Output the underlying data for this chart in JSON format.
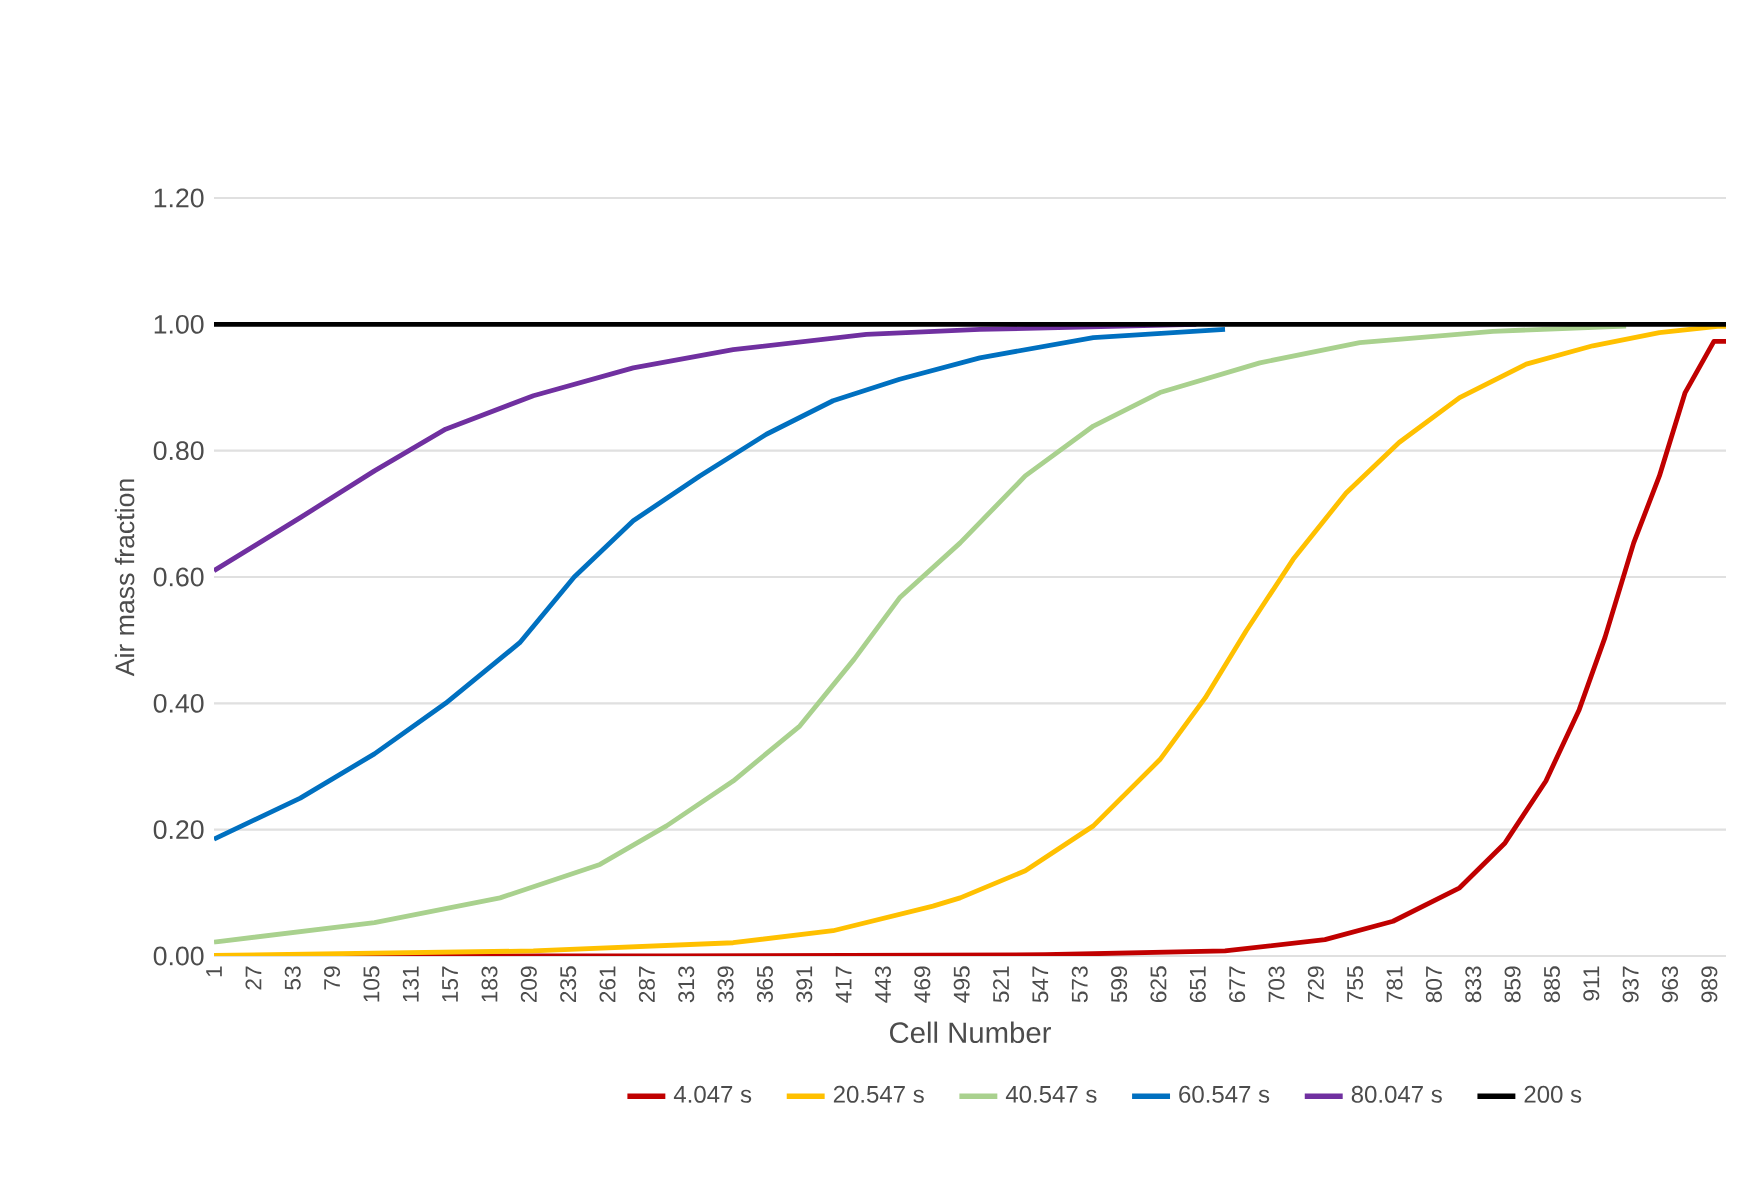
{
  "chart_data": {
    "type": "line",
    "xlabel": "Cell Number",
    "ylabel": "Air mass fraction",
    "xlim": [
      1,
      1000
    ],
    "ylim": [
      0,
      1.2
    ],
    "xticks": [
      1,
      27,
      53,
      79,
      105,
      131,
      157,
      183,
      209,
      235,
      261,
      287,
      313,
      339,
      365,
      391,
      417,
      443,
      469,
      495,
      521,
      547,
      573,
      599,
      625,
      651,
      677,
      703,
      729,
      755,
      781,
      807,
      833,
      859,
      885,
      911,
      937,
      963,
      989
    ],
    "yticks": [
      {
        "value": 0,
        "label": "0.00"
      },
      {
        "value": 0.2,
        "label": "0.20"
      },
      {
        "value": 0.4,
        "label": "0.40"
      },
      {
        "value": 0.6,
        "label": "0.60"
      },
      {
        "value": 0.8,
        "label": "0.80"
      },
      {
        "value": 1.0,
        "label": "1.00"
      },
      {
        "value": 1.2,
        "label": "1.20"
      }
    ],
    "grid": "y",
    "legend": "bottom",
    "series": [
      {
        "name": "4.047 s",
        "color": "#c00000",
        "x": [
          1,
          300,
          550,
          669,
          735,
          780,
          824,
          854,
          881,
          903,
          920,
          939,
          956,
          973,
          992,
          1000
        ],
        "values": [
          0,
          0,
          0.002,
          0.008,
          0.026,
          0.055,
          0.108,
          0.179,
          0.277,
          0.39,
          0.504,
          0.654,
          0.76,
          0.892,
          0.973,
          0.973
        ]
      },
      {
        "name": "20.547 s",
        "color": "#ffc000",
        "x": [
          1,
          212,
          344,
          410,
          476,
          494,
          537,
          582,
          626,
          656,
          683,
          714,
          749,
          784,
          824,
          868,
          912,
          956,
          996,
          1000
        ],
        "values": [
          0.001,
          0.008,
          0.021,
          0.04,
          0.079,
          0.092,
          0.135,
          0.206,
          0.311,
          0.409,
          0.515,
          0.628,
          0.733,
          0.813,
          0.884,
          0.937,
          0.966,
          0.987,
          0.997,
          0.997
        ]
      },
      {
        "name": "40.547 s",
        "color": "#a9d18e",
        "x": [
          1,
          107,
          190,
          256,
          300,
          344,
          388,
          424,
          454,
          494,
          537,
          582,
          626,
          692,
          758,
          846,
          934
        ],
        "values": [
          0.022,
          0.053,
          0.092,
          0.145,
          0.206,
          0.277,
          0.364,
          0.47,
          0.567,
          0.654,
          0.76,
          0.839,
          0.892,
          0.939,
          0.971,
          0.989,
          0.997
        ]
      },
      {
        "name": "60.547 s",
        "color": "#0070c0",
        "x": [
          1,
          58,
          107,
          154,
          203,
          239,
          278,
          322,
          366,
          410,
          454,
          507,
          582,
          669
        ],
        "values": [
          0.185,
          0.25,
          0.32,
          0.4,
          0.496,
          0.6,
          0.689,
          0.76,
          0.826,
          0.879,
          0.913,
          0.947,
          0.979,
          0.992
        ]
      },
      {
        "name": "80.047 s",
        "color": "#7030a0",
        "x": [
          1,
          58,
          107,
          154,
          212,
          278,
          344,
          432,
          507,
          650
        ],
        "values": [
          0.61,
          0.694,
          0.768,
          0.834,
          0.887,
          0.931,
          0.96,
          0.984,
          0.992,
          1.0
        ]
      },
      {
        "name": "200 s",
        "color": "#000000",
        "x": [
          1,
          1000
        ],
        "values": [
          1.0,
          1.0
        ]
      }
    ]
  }
}
